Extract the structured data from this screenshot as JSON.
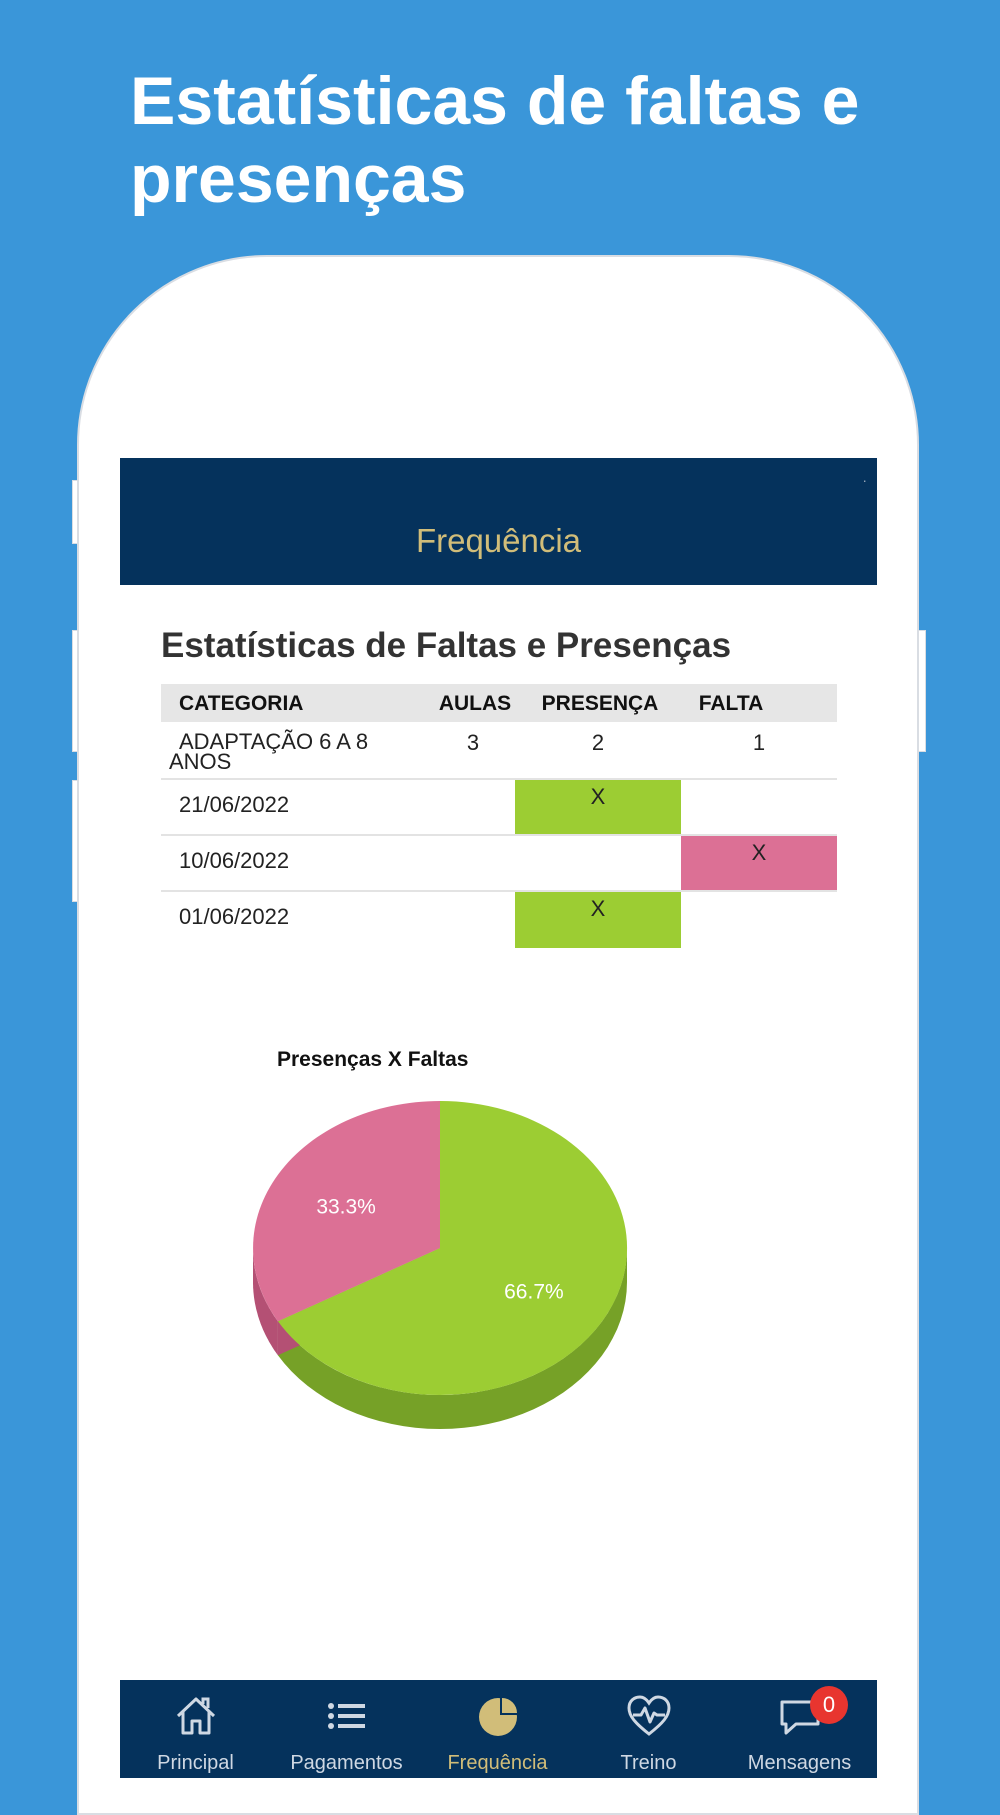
{
  "promo": {
    "title": "Estatísticas de faltas e presenças"
  },
  "header": {
    "title": "Frequência"
  },
  "section": {
    "title": "Estatísticas de Faltas e Presenças"
  },
  "table": {
    "columns": [
      "CATEGORIA",
      "AULAS",
      "PRESENÇA",
      "FALTA"
    ],
    "summary": {
      "category_line1": "ADAPTAÇÃO 6 A 8",
      "category_line2": "ANOS",
      "aulas": "3",
      "presenca": "2",
      "falta": "1"
    },
    "rows": [
      {
        "date": "21/06/2022",
        "presenca": "X",
        "falta": ""
      },
      {
        "date": "10/06/2022",
        "presenca": "",
        "falta": "X"
      },
      {
        "date": "01/06/2022",
        "presenca": "X",
        "falta": ""
      }
    ]
  },
  "chart_data": {
    "type": "pie",
    "title": "Presenças X Faltas",
    "slices": [
      {
        "label": "66.7%",
        "value": 66.7,
        "color": "#9ccd33",
        "dark": "#76a127"
      },
      {
        "label": "33.3%",
        "value": 33.3,
        "color": "#dc7095",
        "dark": "#b45074"
      }
    ]
  },
  "tabbar": {
    "items": [
      {
        "label": "Principal",
        "icon": "home-icon"
      },
      {
        "label": "Pagamentos",
        "icon": "list-icon"
      },
      {
        "label": "Frequência",
        "icon": "pie-chart-icon",
        "active": true
      },
      {
        "label": "Treino",
        "icon": "heartbeat-icon"
      },
      {
        "label": "Mensagens",
        "icon": "chat-icon",
        "badge": "0"
      }
    ]
  },
  "colors": {
    "accent": "#d1bd79",
    "navy": "#05325c",
    "background": "#3a96d9",
    "present": "#9ccd33",
    "absent": "#dc7095"
  }
}
